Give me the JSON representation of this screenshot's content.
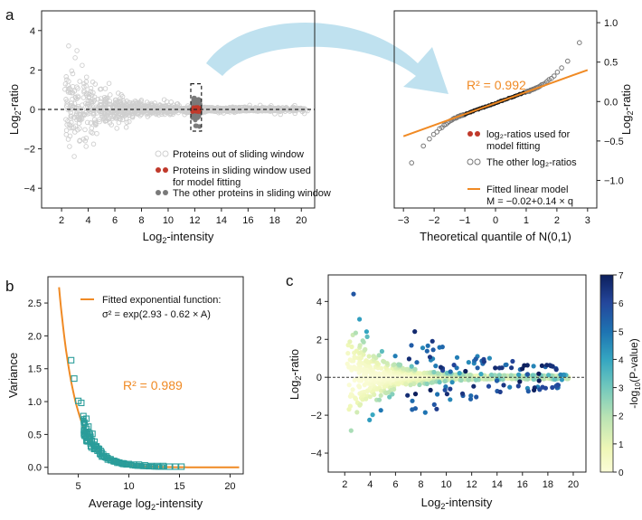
{
  "colors": {
    "grey_light": "#cfcfcf",
    "grey_mid": "#7a7a7a",
    "red": "#c0392b",
    "orange": "#f08a24",
    "teal": "#2a9d9a",
    "arrow": "#bfe1ef"
  },
  "chart_data": [
    {
      "panel": "a",
      "type": "scatter",
      "xlabel_base": "Log",
      "xlabel_sub": "2",
      "xlabel_tail": "-intensity",
      "ylabel_base": "Log",
      "ylabel_sub": "2",
      "ylabel_tail": "-ratio",
      "xlim": [
        0.5,
        21
      ],
      "ylim": [
        -5,
        5
      ],
      "xticks": [
        2,
        4,
        6,
        8,
        10,
        12,
        14,
        16,
        18,
        20
      ],
      "yticks": [
        -4,
        -2,
        0,
        2,
        4
      ],
      "window": {
        "x": [
          11.7,
          12.5
        ],
        "y": [
          -1.1,
          1.3
        ]
      },
      "legend": [
        {
          "text": "Proteins out of sliding window",
          "marker": "open-grey"
        },
        {
          "text": "Proteins in sliding window used",
          "text2": "for model fitting",
          "marker": "red"
        },
        {
          "text": "The other proteins in sliding window",
          "marker": "dark-grey"
        }
      ]
    },
    {
      "panel": "a-right",
      "type": "scatter",
      "xlabel": "Theoretical quantile of N(0,1)",
      "xlim": [
        -3.3,
        3.3
      ],
      "ylim": [
        -1.35,
        1.15
      ],
      "xticks": [
        -3,
        -2,
        -1,
        0,
        1,
        2,
        3
      ],
      "yticks": [
        -1.0,
        -0.5,
        0.0,
        0.5,
        1.0
      ],
      "r2": "R² = 0.992",
      "fit": {
        "intercept": -0.02,
        "slope": 0.14
      },
      "legend": [
        {
          "text": "log₂-ratios used for",
          "text2": "model fitting",
          "marker": "red"
        },
        {
          "text": "The other log₂-ratios",
          "marker": "open-grey"
        },
        {
          "text": "Fitted linear model",
          "text2": "M = −0.02+0.14 × q",
          "marker": "orange-line"
        }
      ]
    },
    {
      "panel": "b",
      "type": "scatter",
      "xlabel_base": "Average log",
      "xlabel_sub": "2",
      "xlabel_tail": "-intensity",
      "ylabel": "Variance",
      "xlim": [
        2,
        21.3
      ],
      "ylim": [
        -0.1,
        2.9
      ],
      "xticks": [
        5,
        10,
        15,
        20
      ],
      "yticks": [
        0.0,
        0.5,
        1.0,
        1.5,
        2.0,
        2.5
      ],
      "r2": "R² = 0.989",
      "fit": {
        "a": 2.93,
        "b": 0.62
      },
      "legend": [
        {
          "text": "Fitted exponential function:",
          "text2": "σ² = exp(2.93 - 0.62 × A)",
          "marker": "orange-line"
        }
      ],
      "points": [
        [
          4.3,
          1.63
        ],
        [
          4.6,
          1.35
        ],
        [
          5.0,
          1.01
        ],
        [
          5.3,
          0.98
        ],
        [
          5.5,
          0.78
        ],
        [
          5.8,
          0.74
        ],
        [
          6.0,
          0.62
        ],
        [
          6.1,
          0.52
        ],
        [
          6.4,
          0.51
        ],
        [
          6.6,
          0.39
        ],
        [
          6.8,
          0.32
        ],
        [
          7.0,
          0.26
        ],
        [
          7.3,
          0.21
        ],
        [
          7.6,
          0.17
        ],
        [
          7.9,
          0.14
        ],
        [
          8.2,
          0.11
        ],
        [
          8.6,
          0.09
        ],
        [
          9.0,
          0.07
        ],
        [
          9.5,
          0.06
        ],
        [
          10.0,
          0.05
        ],
        [
          10.5,
          0.04
        ],
        [
          11.0,
          0.04
        ],
        [
          11.6,
          0.03
        ],
        [
          12.2,
          0.02
        ],
        [
          12.8,
          0.02
        ],
        [
          13.4,
          0.02
        ],
        [
          14.0,
          0.01
        ],
        [
          14.6,
          0.01
        ],
        [
          15.2,
          0.01
        ],
        [
          6.2,
          0.46
        ],
        [
          6.9,
          0.28
        ]
      ]
    },
    {
      "panel": "c",
      "type": "scatter",
      "xlabel_base": "Log",
      "xlabel_sub": "2",
      "xlabel_tail": "-intensity",
      "ylabel_base": "Log",
      "ylabel_sub": "2",
      "ylabel_tail": "-ratio",
      "xlim": [
        0.7,
        21
      ],
      "ylim": [
        -5,
        5.4
      ],
      "xticks": [
        2,
        4,
        6,
        8,
        10,
        12,
        14,
        16,
        18,
        20
      ],
      "yticks": [
        -4,
        -2,
        0,
        2,
        4
      ],
      "colorbar": {
        "ticks": [
          0,
          1,
          2,
          3,
          4,
          5,
          6,
          7
        ],
        "label_pre": "-log",
        "label_sub": "10",
        "label_post": "(P-value)"
      }
    }
  ],
  "panels": {
    "a": "a",
    "b": "b",
    "c": "c"
  }
}
